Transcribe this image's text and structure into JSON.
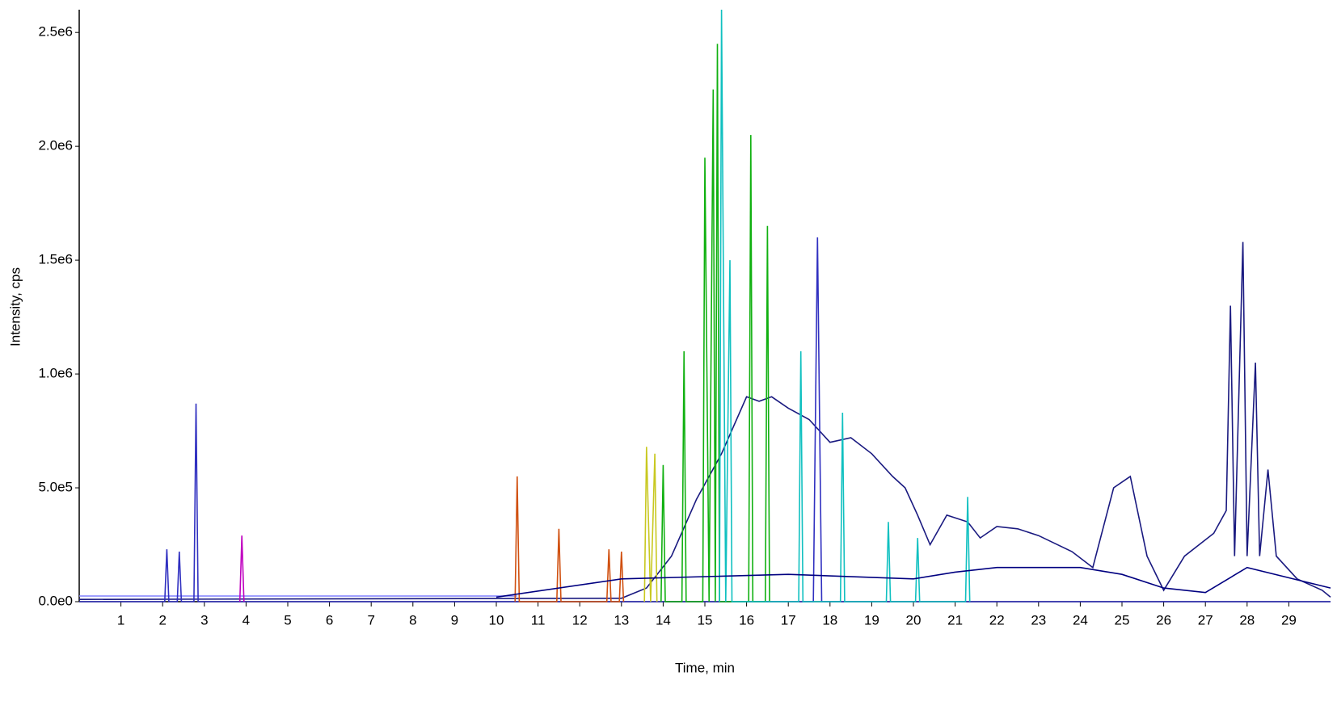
{
  "chart_data": {
    "type": "line",
    "xlabel": "Time, min",
    "ylabel": "Intensity, cps",
    "xlim": [
      0,
      30
    ],
    "ylim": [
      0,
      2600000
    ],
    "xticks": [
      1,
      2,
      3,
      4,
      5,
      6,
      7,
      8,
      9,
      10,
      11,
      12,
      13,
      14,
      15,
      16,
      17,
      18,
      19,
      20,
      21,
      22,
      23,
      24,
      25,
      26,
      27,
      28,
      29
    ],
    "yticks": [
      {
        "value": 0,
        "label": "0.0e0"
      },
      {
        "value": 500000,
        "label": "5.0e5"
      },
      {
        "value": 1000000,
        "label": "1.0e6"
      },
      {
        "value": 1500000,
        "label": "1.5e6"
      },
      {
        "value": 2000000,
        "label": "2.0e6"
      },
      {
        "value": 2500000,
        "label": "2.5e6"
      }
    ],
    "series": [
      {
        "color": "#8080ff",
        "x": [
          0,
          10.5
        ],
        "values": [
          25000,
          25000
        ]
      },
      {
        "color": "#1a1a80",
        "x": [
          0,
          13,
          13.6,
          14.2,
          14.8,
          15.4,
          16,
          16.3,
          16.6,
          17,
          17.5,
          18,
          18.5,
          19,
          19.5,
          19.8,
          20.1,
          20.4,
          20.8,
          21.3,
          21.6,
          22,
          22.5,
          23,
          23.8,
          24.3,
          24.8,
          25.2,
          25.6,
          26,
          26.5,
          27.2,
          27.5,
          27.6,
          27.7,
          27.9,
          28.0,
          28.2,
          28.3,
          28.5,
          28.7,
          29.2,
          29.8,
          30
        ],
        "values": [
          10000,
          15000,
          60000,
          200000,
          450000,
          650000,
          900000,
          880000,
          900000,
          850000,
          800000,
          700000,
          720000,
          650000,
          550000,
          500000,
          380000,
          250000,
          380000,
          350000,
          280000,
          330000,
          320000,
          290000,
          220000,
          150000,
          500000,
          550000,
          200000,
          50000,
          200000,
          300000,
          400000,
          1300000,
          200000,
          1580000,
          200000,
          1050000,
          200000,
          580000,
          200000,
          100000,
          50000,
          20000
        ]
      },
      {
        "color": "#3030c0",
        "x": [
          0,
          2.05,
          2.1,
          2.15,
          2.35,
          2.4,
          2.45,
          2.75,
          2.8,
          2.85,
          3.1,
          17.6,
          17.7,
          17.8,
          30
        ],
        "values": [
          0,
          0,
          230000,
          0,
          0,
          220000,
          0,
          0,
          870000,
          0,
          0,
          0,
          1600000,
          0,
          0
        ]
      },
      {
        "color": "#c000c0",
        "x": [
          3.85,
          3.9,
          3.95
        ],
        "values": [
          0,
          290000,
          0
        ]
      },
      {
        "color": "#d05010",
        "x": [
          10.45,
          10.5,
          10.55,
          11.45,
          11.5,
          11.55,
          12.65,
          12.7,
          12.75,
          12.95,
          13,
          13.05
        ],
        "values": [
          0,
          550000,
          0,
          0,
          320000,
          0,
          0,
          230000,
          0,
          0,
          220000,
          0
        ]
      },
      {
        "color": "#c8c820",
        "x": [
          13.55,
          13.6,
          13.7,
          13.8,
          13.85
        ],
        "values": [
          0,
          680000,
          0,
          650000,
          0
        ]
      },
      {
        "color": "#10b010",
        "x": [
          13.95,
          14,
          14.05,
          14.45,
          14.5,
          14.55,
          14.95,
          15,
          15.1,
          15.2,
          15.25,
          15.3,
          15.35,
          16.05,
          16.1,
          16.15,
          16.45,
          16.5,
          16.55
        ],
        "values": [
          0,
          600000,
          0,
          0,
          1100000,
          0,
          0,
          1950000,
          0,
          2250000,
          0,
          2450000,
          0,
          0,
          2050000,
          0,
          0,
          1650000,
          0
        ]
      },
      {
        "color": "#10c0c0",
        "x": [
          15.35,
          15.4,
          15.5,
          15.6,
          15.65,
          17.25,
          17.3,
          17.35,
          18.25,
          18.3,
          18.35,
          19.35,
          19.4,
          19.45,
          20.05,
          20.1,
          20.15,
          21.25,
          21.3,
          21.35
        ],
        "values": [
          0,
          2600000,
          0,
          1500000,
          0,
          0,
          1100000,
          0,
          0,
          830000,
          0,
          0,
          350000,
          0,
          0,
          280000,
          0,
          0,
          460000,
          0
        ]
      },
      {
        "color": "#000080",
        "x": [
          10,
          13,
          17,
          20,
          21,
          22,
          24,
          25,
          26,
          27,
          28,
          30
        ],
        "values": [
          20000,
          100000,
          120000,
          100000,
          130000,
          150000,
          150000,
          120000,
          60000,
          40000,
          150000,
          60000
        ]
      }
    ]
  }
}
